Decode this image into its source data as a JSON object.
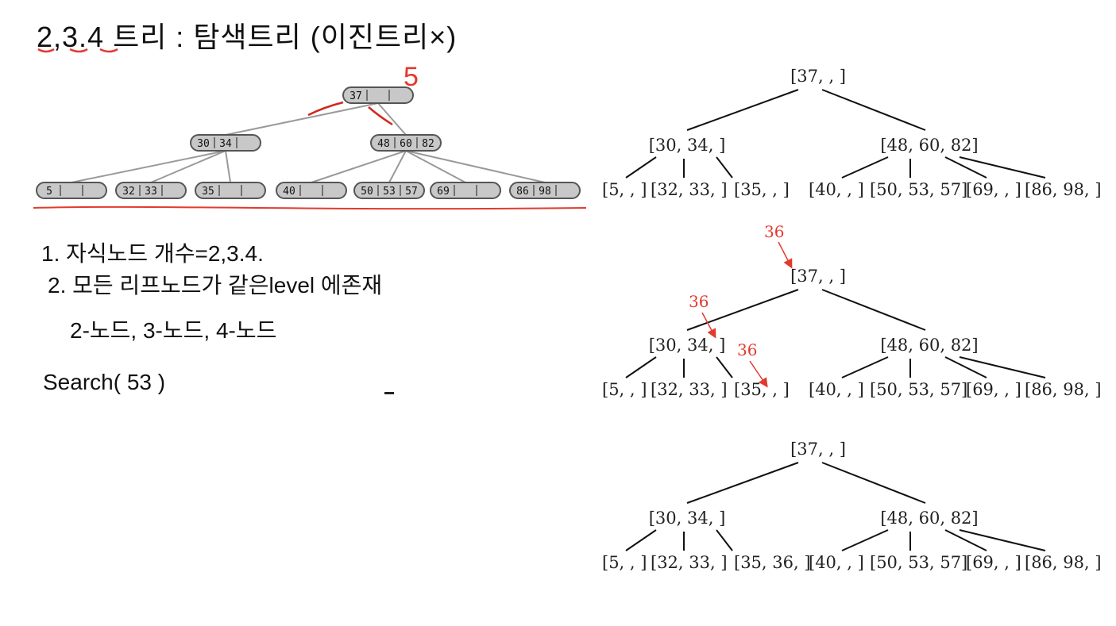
{
  "title_handwritten": "2,3.4 트리 : 탐색트리 (이진트리×)",
  "annotation_mark": "5",
  "notes": [
    "1. 자식노드 개수=2,3.4.",
    "2. 모든 리프노드가 같은level 에존재",
    "2-노드, 3-노드, 4-노드",
    "Search( 53 )"
  ],
  "gray_tree": {
    "root": [
      "37",
      "",
      ""
    ],
    "level1": [
      [
        "30",
        "34",
        ""
      ],
      [
        "48",
        "60",
        "82"
      ]
    ],
    "leaves": [
      [
        "5",
        "",
        ""
      ],
      [
        "32",
        "33",
        ""
      ],
      [
        "35",
        "",
        ""
      ],
      [
        "40",
        "",
        ""
      ],
      [
        "50",
        "53",
        "57"
      ],
      [
        "69",
        "",
        ""
      ],
      [
        "86",
        "98",
        ""
      ]
    ]
  },
  "diagrams": [
    {
      "root": "[37, , ]",
      "mid": [
        "[30, 34, ]",
        "[48, 60, 82]"
      ],
      "leaves": [
        "[5, , ]",
        "[32, 33, ]",
        "[35, , ]",
        "[40, , ]",
        "[50, 53, 57]",
        "[69, , ]",
        "[86, 98, ]"
      ],
      "insert_labels": []
    },
    {
      "root": "[37, , ]",
      "mid": [
        "[30, 34, ]",
        "[48, 60, 82]"
      ],
      "leaves": [
        "[5, , ]",
        "[32, 33, ]",
        "[35, , ]",
        "[40, , ]",
        "[50, 53, 57]",
        "[69, , ]",
        "[86, 98, ]"
      ],
      "insert_labels": [
        "36",
        "36",
        "36"
      ]
    },
    {
      "root": "[37, , ]",
      "mid": [
        "[30, 34, ]",
        "[48, 60, 82]"
      ],
      "leaves": [
        "[5, , ]",
        "[32, 33, ]",
        "[35, 36, ]",
        "[40, , ]",
        "[50, 53, 57]",
        "[69, , ]",
        "[86, 98, ]"
      ],
      "insert_labels": []
    }
  ],
  "colors": {
    "red": "#e23a2e",
    "node_fill": "#c8c8c8",
    "node_stroke": "#555555",
    "edge_gray": "#9a9a9a"
  }
}
